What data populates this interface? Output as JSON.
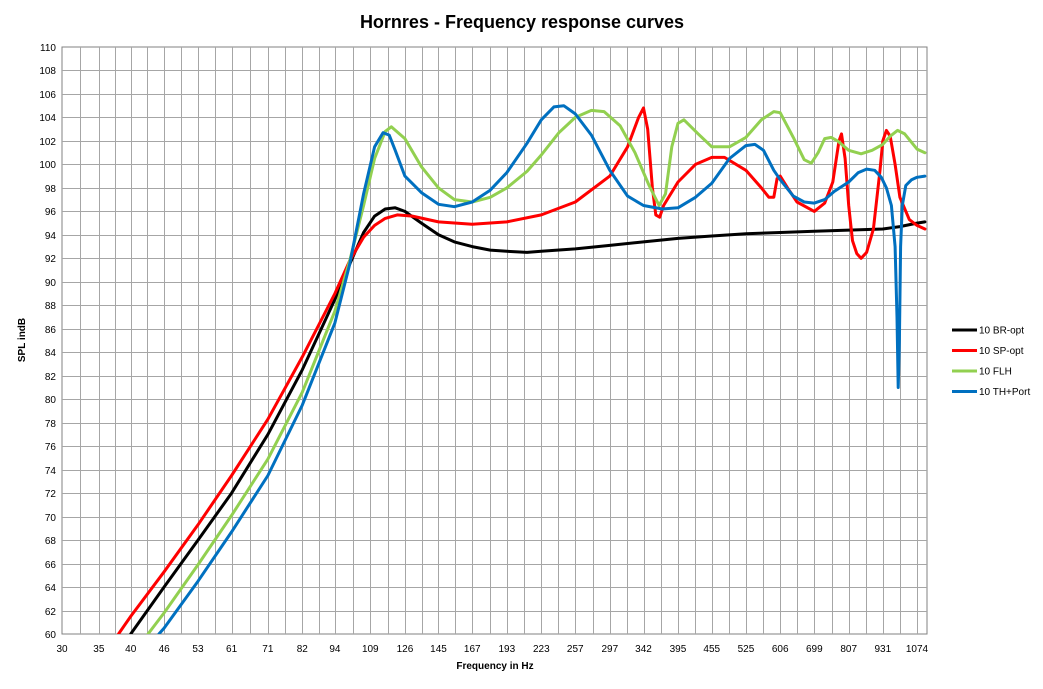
{
  "chart_data": {
    "type": "line",
    "title": "Hornres - Frequency response curves",
    "xlabel": "Frequency in Hz",
    "ylabel": "SPL indB",
    "xscale": "log",
    "xlim": [
      30,
      1120
    ],
    "ylim": [
      60,
      110
    ],
    "xticks": [
      30,
      35,
      40,
      46,
      53,
      61,
      71,
      82,
      94,
      109,
      126,
      145,
      167,
      193,
      223,
      257,
      297,
      342,
      395,
      455,
      525,
      606,
      699,
      807,
      931,
      1074
    ],
    "yticks": [
      60,
      62,
      64,
      66,
      68,
      70,
      72,
      74,
      76,
      78,
      80,
      82,
      84,
      86,
      88,
      90,
      92,
      94,
      96,
      98,
      100,
      102,
      104,
      106,
      108,
      110
    ],
    "grid": true,
    "legend_position": "right",
    "series": [
      {
        "name": "10 BR-opt",
        "color": "#000000",
        "points": [
          [
            40,
            60
          ],
          [
            46,
            64
          ],
          [
            53,
            68
          ],
          [
            61,
            72
          ],
          [
            71,
            77
          ],
          [
            82,
            82.5
          ],
          [
            94,
            88.5
          ],
          [
            100,
            91.5
          ],
          [
            106,
            94.2
          ],
          [
            111,
            95.6
          ],
          [
            116,
            96.2
          ],
          [
            121,
            96.3
          ],
          [
            126,
            96
          ],
          [
            135,
            95
          ],
          [
            145,
            94
          ],
          [
            155,
            93.4
          ],
          [
            167,
            93
          ],
          [
            180,
            92.7
          ],
          [
            193,
            92.6
          ],
          [
            210,
            92.5
          ],
          [
            223,
            92.6
          ],
          [
            257,
            92.8
          ],
          [
            297,
            93.1
          ],
          [
            342,
            93.4
          ],
          [
            395,
            93.7
          ],
          [
            455,
            93.9
          ],
          [
            525,
            94.1
          ],
          [
            606,
            94.2
          ],
          [
            699,
            94.3
          ],
          [
            807,
            94.4
          ],
          [
            931,
            94.5
          ],
          [
            1000,
            94.7
          ],
          [
            1074,
            95
          ],
          [
            1110,
            95.1
          ]
        ]
      },
      {
        "name": "10 SP-opt",
        "color": "#ff0000",
        "points": [
          [
            38,
            60
          ],
          [
            40,
            61.5
          ],
          [
            46,
            65.3
          ],
          [
            53,
            69.3
          ],
          [
            61,
            73.5
          ],
          [
            71,
            78.3
          ],
          [
            82,
            83.6
          ],
          [
            94,
            89
          ],
          [
            100,
            91.8
          ],
          [
            106,
            93.8
          ],
          [
            111,
            94.8
          ],
          [
            116,
            95.4
          ],
          [
            122,
            95.7
          ],
          [
            130,
            95.6
          ],
          [
            145,
            95.1
          ],
          [
            167,
            94.9
          ],
          [
            193,
            95.1
          ],
          [
            223,
            95.7
          ],
          [
            257,
            96.8
          ],
          [
            297,
            99
          ],
          [
            320,
            101.5
          ],
          [
            335,
            104
          ],
          [
            342,
            104.8
          ],
          [
            348,
            103
          ],
          [
            355,
            98
          ],
          [
            360,
            95.7
          ],
          [
            366,
            95.5
          ],
          [
            372,
            96.5
          ],
          [
            395,
            98.5
          ],
          [
            425,
            100
          ],
          [
            455,
            100.6
          ],
          [
            480,
            100.6
          ],
          [
            525,
            99.5
          ],
          [
            560,
            98
          ],
          [
            578,
            97.2
          ],
          [
            590,
            97.2
          ],
          [
            598,
            98.8
          ],
          [
            606,
            99
          ],
          [
            625,
            98
          ],
          [
            650,
            96.8
          ],
          [
            699,
            96
          ],
          [
            730,
            96.7
          ],
          [
            755,
            98.5
          ],
          [
            775,
            102
          ],
          [
            783,
            102.6
          ],
          [
            795,
            100.5
          ],
          [
            807,
            96.5
          ],
          [
            820,
            93.5
          ],
          [
            835,
            92.4
          ],
          [
            850,
            92
          ],
          [
            870,
            92.5
          ],
          [
            895,
            94.5
          ],
          [
            920,
            99.5
          ],
          [
            931,
            102
          ],
          [
            945,
            102.9
          ],
          [
            960,
            102.4
          ],
          [
            980,
            100
          ],
          [
            1000,
            97.2
          ],
          [
            1040,
            95.3
          ],
          [
            1074,
            94.8
          ],
          [
            1110,
            94.5
          ]
        ]
      },
      {
        "name": "10 FLH",
        "color": "#92d050",
        "points": [
          [
            43,
            60
          ],
          [
            46,
            61.8
          ],
          [
            53,
            65.9
          ],
          [
            61,
            70.1
          ],
          [
            71,
            74.9
          ],
          [
            82,
            80.6
          ],
          [
            94,
            87.5
          ],
          [
            100,
            91.8
          ],
          [
            106,
            96.5
          ],
          [
            111,
            100.5
          ],
          [
            116,
            102.8
          ],
          [
            119,
            103.2
          ],
          [
            126,
            102.2
          ],
          [
            135,
            99.8
          ],
          [
            145,
            98
          ],
          [
            155,
            97
          ],
          [
            167,
            96.8
          ],
          [
            180,
            97.2
          ],
          [
            193,
            98
          ],
          [
            210,
            99.4
          ],
          [
            223,
            100.8
          ],
          [
            240,
            102.7
          ],
          [
            257,
            104
          ],
          [
            275,
            104.6
          ],
          [
            290,
            104.5
          ],
          [
            310,
            103.3
          ],
          [
            330,
            101
          ],
          [
            350,
            98.2
          ],
          [
            365,
            96.5
          ],
          [
            375,
            97.5
          ],
          [
            385,
            101.5
          ],
          [
            395,
            103.5
          ],
          [
            405,
            103.8
          ],
          [
            430,
            102.6
          ],
          [
            455,
            101.5
          ],
          [
            490,
            101.5
          ],
          [
            525,
            102.3
          ],
          [
            560,
            103.8
          ],
          [
            590,
            104.5
          ],
          [
            606,
            104.4
          ],
          [
            640,
            102.3
          ],
          [
            670,
            100.4
          ],
          [
            690,
            100.1
          ],
          [
            710,
            101
          ],
          [
            730,
            102.2
          ],
          [
            750,
            102.3
          ],
          [
            770,
            102
          ],
          [
            807,
            101.2
          ],
          [
            850,
            100.9
          ],
          [
            890,
            101.2
          ],
          [
            931,
            101.7
          ],
          [
            960,
            102.4
          ],
          [
            990,
            102.9
          ],
          [
            1020,
            102.6
          ],
          [
            1074,
            101.3
          ],
          [
            1110,
            101
          ]
        ]
      },
      {
        "name": "10 TH+Port",
        "color": "#0070c0",
        "points": [
          [
            45,
            60
          ],
          [
            46,
            60.5
          ],
          [
            53,
            64.5
          ],
          [
            61,
            68.7
          ],
          [
            71,
            73.5
          ],
          [
            82,
            79.5
          ],
          [
            94,
            86.5
          ],
          [
            100,
            91.5
          ],
          [
            106,
            97.5
          ],
          [
            111,
            101.5
          ],
          [
            115,
            102.7
          ],
          [
            118,
            102.5
          ],
          [
            121,
            101.2
          ],
          [
            126,
            99
          ],
          [
            135,
            97.6
          ],
          [
            145,
            96.6
          ],
          [
            155,
            96.4
          ],
          [
            167,
            96.8
          ],
          [
            180,
            97.8
          ],
          [
            193,
            99.3
          ],
          [
            210,
            101.8
          ],
          [
            223,
            103.8
          ],
          [
            235,
            104.9
          ],
          [
            245,
            105
          ],
          [
            257,
            104.3
          ],
          [
            275,
            102.5
          ],
          [
            297,
            99.5
          ],
          [
            320,
            97.3
          ],
          [
            342,
            96.5
          ],
          [
            370,
            96.2
          ],
          [
            395,
            96.3
          ],
          [
            425,
            97.2
          ],
          [
            455,
            98.4
          ],
          [
            490,
            100.5
          ],
          [
            525,
            101.6
          ],
          [
            545,
            101.7
          ],
          [
            565,
            101.2
          ],
          [
            590,
            99.5
          ],
          [
            606,
            98.7
          ],
          [
            640,
            97.3
          ],
          [
            670,
            96.8
          ],
          [
            699,
            96.7
          ],
          [
            730,
            97
          ],
          [
            760,
            97.7
          ],
          [
            807,
            98.5
          ],
          [
            840,
            99.3
          ],
          [
            870,
            99.6
          ],
          [
            900,
            99.5
          ],
          [
            925,
            98.9
          ],
          [
            945,
            98
          ],
          [
            965,
            96.5
          ],
          [
            980,
            93
          ],
          [
            988,
            87
          ],
          [
            993,
            81
          ],
          [
            998,
            85
          ],
          [
            1003,
            93
          ],
          [
            1010,
            96.5
          ],
          [
            1025,
            98.2
          ],
          [
            1050,
            98.7
          ],
          [
            1074,
            98.9
          ],
          [
            1110,
            99
          ]
        ]
      }
    ]
  }
}
